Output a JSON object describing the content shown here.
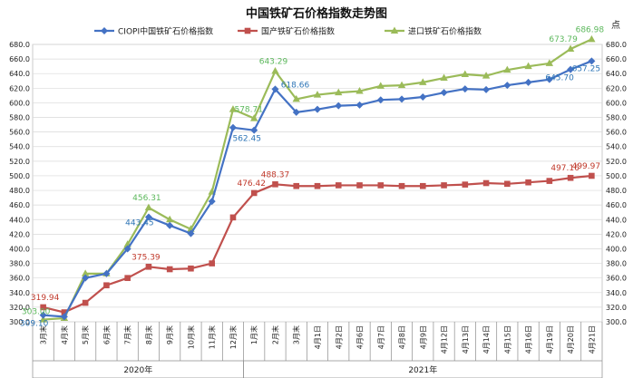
{
  "chart_data": {
    "type": "line",
    "title": "中国铁矿石价格指数走势图",
    "right_axis_unit": "点",
    "ylim": [
      300,
      680
    ],
    "ytick_step": 20,
    "grid": true,
    "legend_position": "top",
    "categories": [
      "3月末",
      "4月末",
      "5月末",
      "6月末",
      "7月末",
      "8月末",
      "9月末",
      "10月末",
      "11月末",
      "12月末",
      "1月末",
      "2月末",
      "3月末",
      "4月1日",
      "4月2日",
      "4月6日",
      "4月7日",
      "4月8日",
      "4月9日",
      "4月12日",
      "4月13日",
      "4月14日",
      "4月15日",
      "4月16日",
      "4月19日",
      "4月20日",
      "4月21日"
    ],
    "year_groups": [
      {
        "label": "2020年",
        "start": 0,
        "end": 9
      },
      {
        "label": "2021年",
        "start": 10,
        "end": 26
      }
    ],
    "series": [
      {
        "name": "CIOPI中国铁矿石价格指数",
        "color": "#4472C4",
        "label_color": "#2E75B6",
        "marker": "diamond",
        "values": [
          309.1,
          307.0,
          360.0,
          366.0,
          400.0,
          443.45,
          432.0,
          421.0,
          465.0,
          566.0,
          562.45,
          618.66,
          587.0,
          591.0,
          596.0,
          597.0,
          604.0,
          605.0,
          608.0,
          614.0,
          619.0,
          618.0,
          624.0,
          628.0,
          632.0,
          645.7,
          657.25
        ]
      },
      {
        "name": "国产铁矿石价格指数",
        "color": "#C0504D",
        "label_color": "#C0392B",
        "marker": "square",
        "values": [
          319.94,
          313.0,
          326.0,
          350.0,
          360.0,
          375.39,
          372.0,
          373.0,
          380.0,
          443.0,
          476.42,
          488.37,
          486.0,
          486.0,
          487.0,
          487.0,
          487.0,
          486.0,
          486.0,
          487.0,
          488.0,
          490.0,
          489.0,
          491.0,
          493.0,
          497.16,
          499.97
        ]
      },
      {
        "name": "进口铁矿石价格指数",
        "color": "#9BBB59",
        "label_color": "#5CB85C",
        "marker": "triangle",
        "values": [
          303.0,
          305.0,
          366.0,
          366.0,
          406.0,
          456.31,
          440.0,
          427.0,
          478.0,
          591.0,
          578.71,
          643.29,
          605.0,
          611.0,
          614.0,
          616.0,
          623.0,
          624.0,
          628.0,
          634.0,
          639.0,
          637.0,
          645.0,
          650.0,
          654.0,
          673.79,
          686.98
        ]
      }
    ],
    "data_labels": [
      {
        "series": 0,
        "index": 0,
        "text": "309.10"
      },
      {
        "series": 0,
        "index": 5,
        "text": "443.45"
      },
      {
        "series": 0,
        "index": 10,
        "text": "562.45"
      },
      {
        "series": 0,
        "index": 11,
        "text": "618.66"
      },
      {
        "series": 0,
        "index": 25,
        "text": "645.70"
      },
      {
        "series": 0,
        "index": 26,
        "text": "657.25"
      },
      {
        "series": 1,
        "index": 0,
        "text": "319.94"
      },
      {
        "series": 1,
        "index": 5,
        "text": "375.39"
      },
      {
        "series": 1,
        "index": 10,
        "text": "476.42"
      },
      {
        "series": 1,
        "index": 11,
        "text": "488.37"
      },
      {
        "series": 1,
        "index": 25,
        "text": "497.16"
      },
      {
        "series": 1,
        "index": 26,
        "text": "499.97"
      },
      {
        "series": 2,
        "index": 0,
        "text": "303.00"
      },
      {
        "series": 2,
        "index": 5,
        "text": "456.31"
      },
      {
        "series": 2,
        "index": 10,
        "text": "578.71"
      },
      {
        "series": 2,
        "index": 11,
        "text": "643.29"
      },
      {
        "series": 2,
        "index": 25,
        "text": "673.79"
      },
      {
        "series": 2,
        "index": 26,
        "text": "686.98"
      }
    ]
  }
}
